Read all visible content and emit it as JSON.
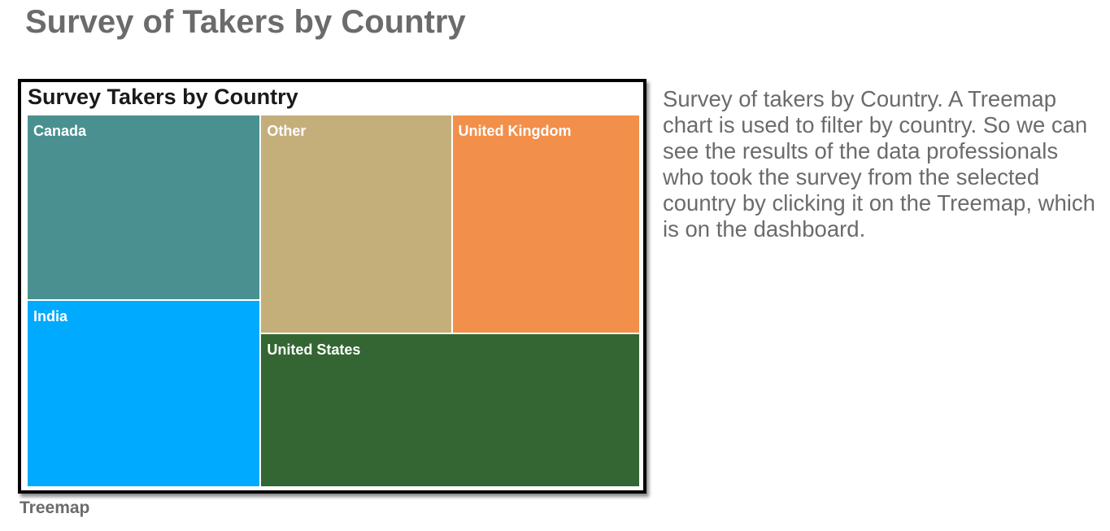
{
  "page": {
    "title": "Survey of Takers by Country",
    "caption": "Treemap",
    "description": "Survey of takers by Country. A Treemap chart is used to filter by country. So we can see the results of the data professionals who took the survey from the selected country by clicking it on the Treemap, which is on the dashboard."
  },
  "chart_data": {
    "type": "treemap",
    "title": "Survey Takers by Country",
    "label_color": "#ffffff",
    "items": [
      {
        "name": "United States",
        "value": 26.2,
        "color": "#336633"
      },
      {
        "name": "India",
        "value": 19.6,
        "color": "#00aaff"
      },
      {
        "name": "Other",
        "value": 18.8,
        "color": "#c4af7b"
      },
      {
        "name": "United Kingdom",
        "value": 18.5,
        "color": "#f28f4a"
      },
      {
        "name": "Canada",
        "value": 19.5,
        "color": "#4a9090"
      }
    ]
  }
}
